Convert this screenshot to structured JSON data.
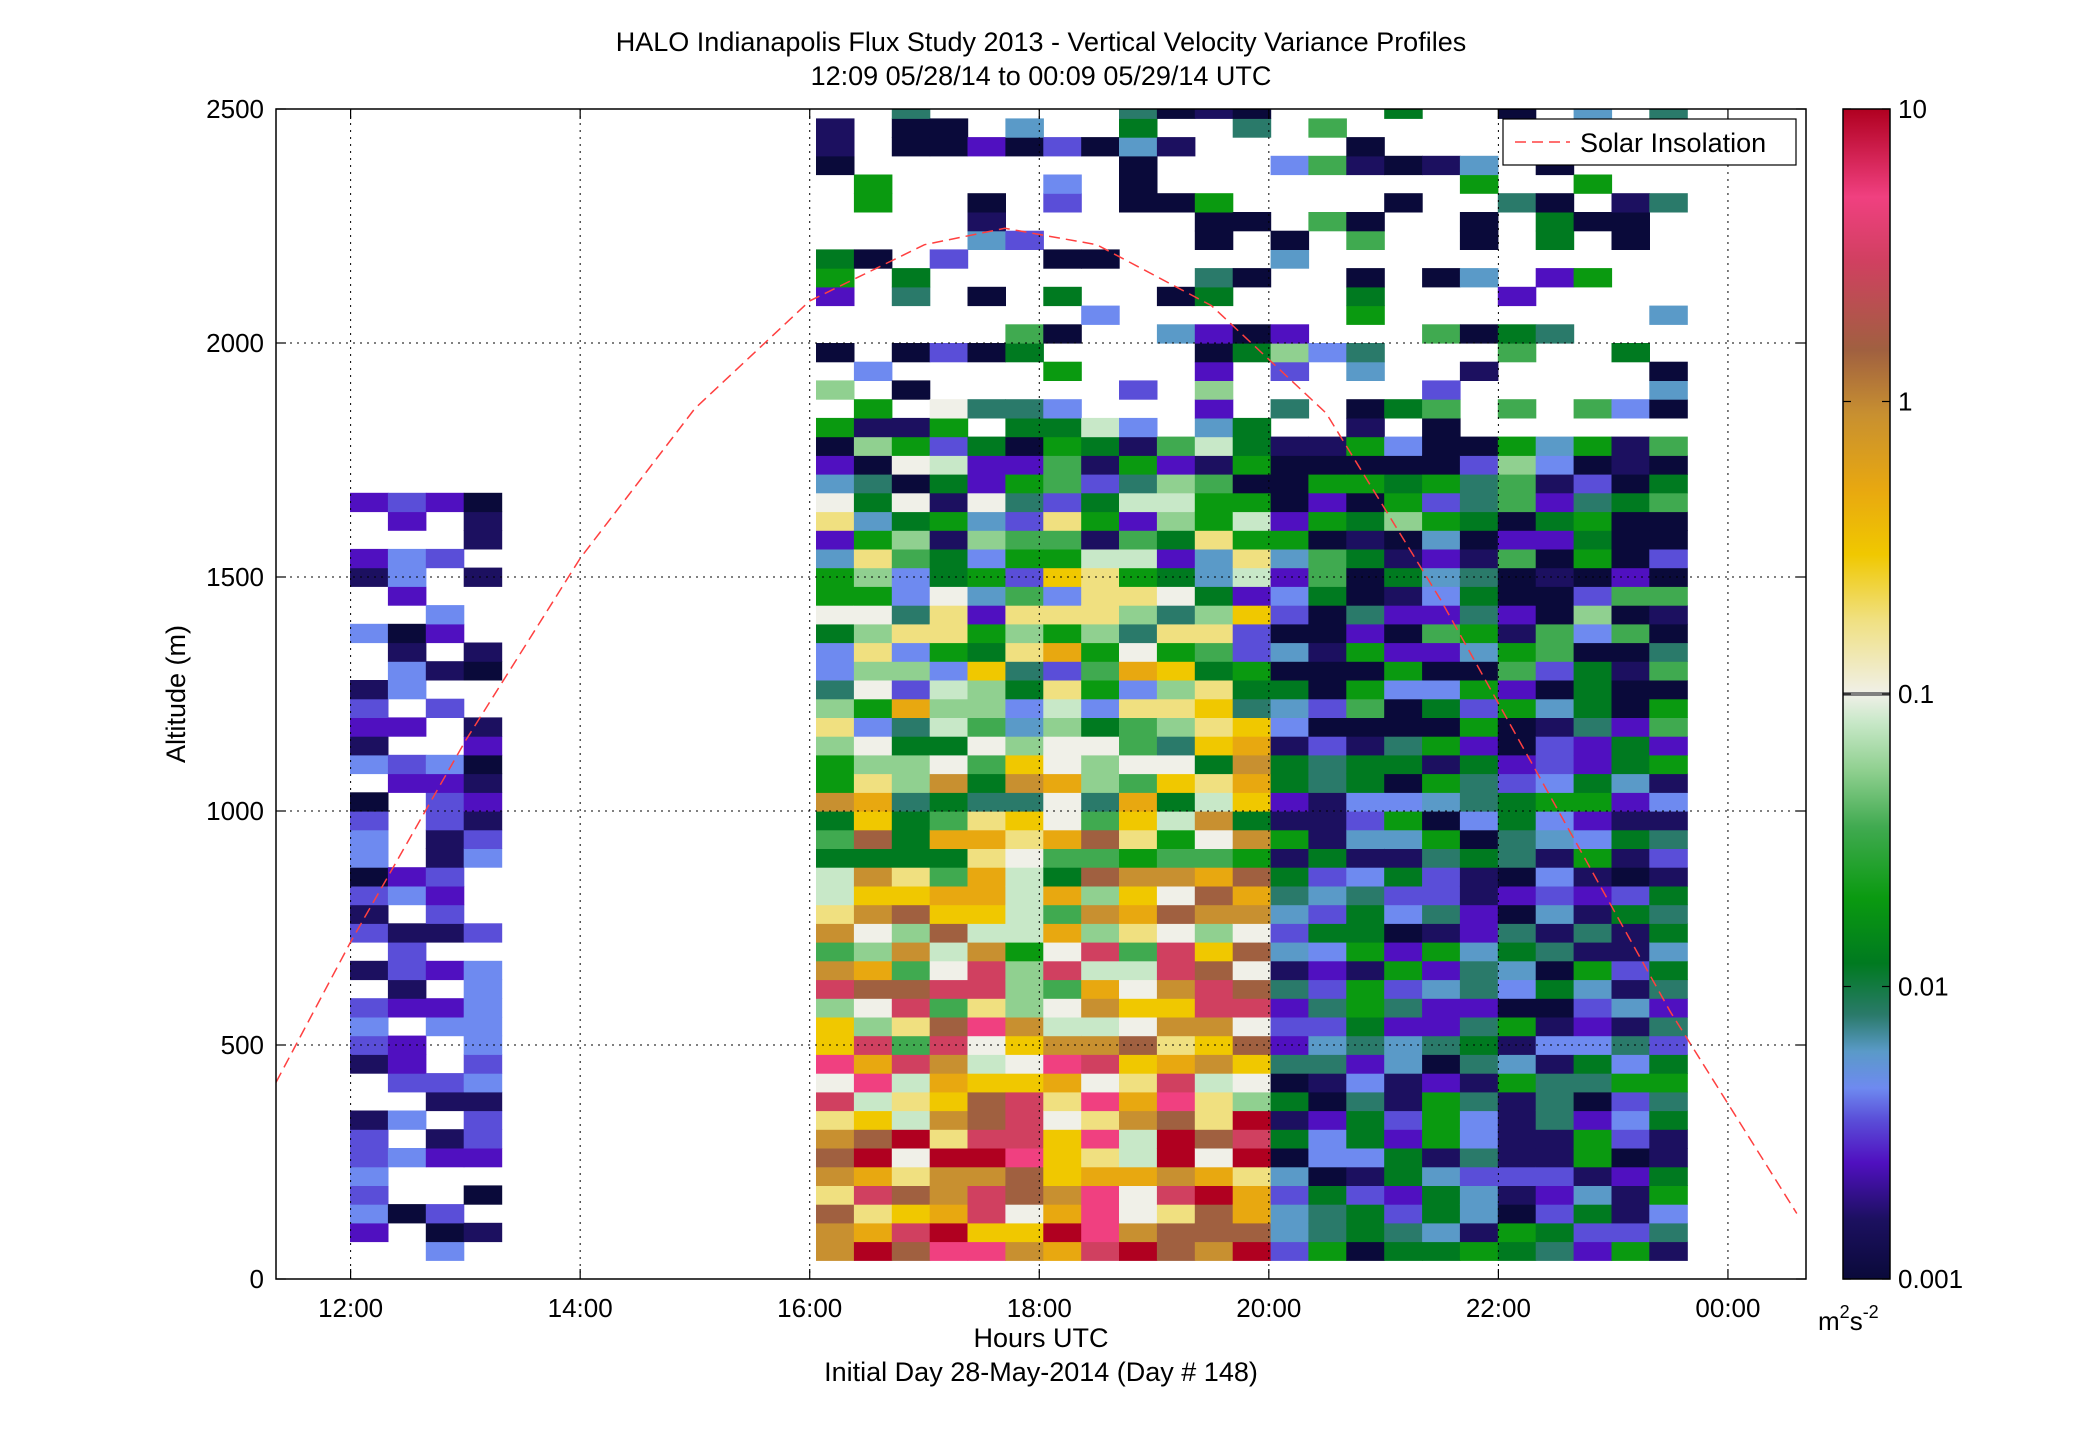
{
  "chart_data": {
    "type": "heatmap",
    "title": "HALO Indianapolis Flux Study 2013 - Vertical Velocity Variance Profiles",
    "subtitle": "12:09 05/28/14 to 00:09 05/29/14  UTC",
    "xlabel": "Hours UTC",
    "xlabel2": "Initial Day 28-May-2014 (Day # 148)",
    "ylabel": "Altitude (m)",
    "xlim": [
      11.35,
      24.68
    ],
    "ylim": [
      0,
      2500
    ],
    "x_ticks": [
      12,
      14,
      16,
      18,
      20,
      22,
      24
    ],
    "x_tick_labels": [
      "12:00",
      "14:00",
      "16:00",
      "18:00",
      "20:00",
      "22:00",
      "00:00"
    ],
    "y_ticks": [
      0,
      500,
      1000,
      1500,
      2000,
      2500
    ],
    "y_tick_labels": [
      "0",
      "500",
      "1000",
      "1500",
      "2000",
      "2500"
    ],
    "grid": true,
    "colorbar": {
      "scale": "log",
      "min": 0.001,
      "max": 10,
      "ticks": [
        0.001,
        0.01,
        0.1,
        1,
        10
      ],
      "tick_labels": [
        "0.001",
        "0.01",
        "0.1",
        "1",
        "10"
      ],
      "unit_base": "m",
      "unit_sup1": "2",
      "unit_mid": "s",
      "unit_sup2": "-2"
    },
    "legend": {
      "placement": "top-right",
      "entries": [
        {
          "name": "Solar Insolation",
          "color": "#ff4040",
          "style": "dashed"
        }
      ]
    },
    "solar_insolation": {
      "x": [
        11.35,
        12.0,
        13.0,
        14.0,
        15.0,
        16.0,
        17.0,
        17.7,
        18.5,
        19.5,
        20.5,
        21.5,
        22.5,
        23.5,
        24.6
      ],
      "y": [
        420,
        720,
        1150,
        1540,
        1860,
        2090,
        2210,
        2245,
        2210,
        2080,
        1850,
        1450,
        1010,
        570,
        140
      ]
    },
    "profile_groups": [
      {
        "times": [
          12.16,
          12.49,
          12.82,
          13.15
        ],
        "height_range": [
          40,
          1650
        ]
      },
      {
        "times": [
          16.22,
          16.55,
          16.88,
          17.21,
          17.54,
          17.87,
          18.2,
          18.53,
          18.86,
          19.19,
          19.52,
          19.85,
          20.18,
          20.51,
          20.84,
          21.17,
          21.5,
          21.83,
          22.16,
          22.49,
          22.82,
          23.15,
          23.48
        ],
        "height_range": [
          40,
          2500
        ]
      }
    ],
    "palette": [
      {
        "value": 0.001,
        "color": "#0a0a3a"
      },
      {
        "value": 0.0016,
        "color": "#1c1060"
      },
      {
        "value": 0.0025,
        "color": "#5010c0"
      },
      {
        "value": 0.0035,
        "color": "#5a4ed8"
      },
      {
        "value": 0.0045,
        "color": "#6e8af0"
      },
      {
        "value": 0.006,
        "color": "#5a9ac8"
      },
      {
        "value": 0.008,
        "color": "#2a7a6a"
      },
      {
        "value": 0.012,
        "color": "#007a20"
      },
      {
        "value": 0.02,
        "color": "#0a9a10"
      },
      {
        "value": 0.035,
        "color": "#40aa50"
      },
      {
        "value": 0.055,
        "color": "#90d090"
      },
      {
        "value": 0.08,
        "color": "#c8e8c8"
      },
      {
        "value": 0.1,
        "color": "#f0f0e8"
      },
      {
        "value": 0.18,
        "color": "#f0e080"
      },
      {
        "value": 0.3,
        "color": "#f0c800"
      },
      {
        "value": 0.5,
        "color": "#e8a810"
      },
      {
        "value": 0.9,
        "color": "#c89030"
      },
      {
        "value": 1.5,
        "color": "#a06040"
      },
      {
        "value": 3,
        "color": "#d04060"
      },
      {
        "value": 5,
        "color": "#f04080"
      },
      {
        "value": 10,
        "color": "#b00020"
      }
    ]
  }
}
